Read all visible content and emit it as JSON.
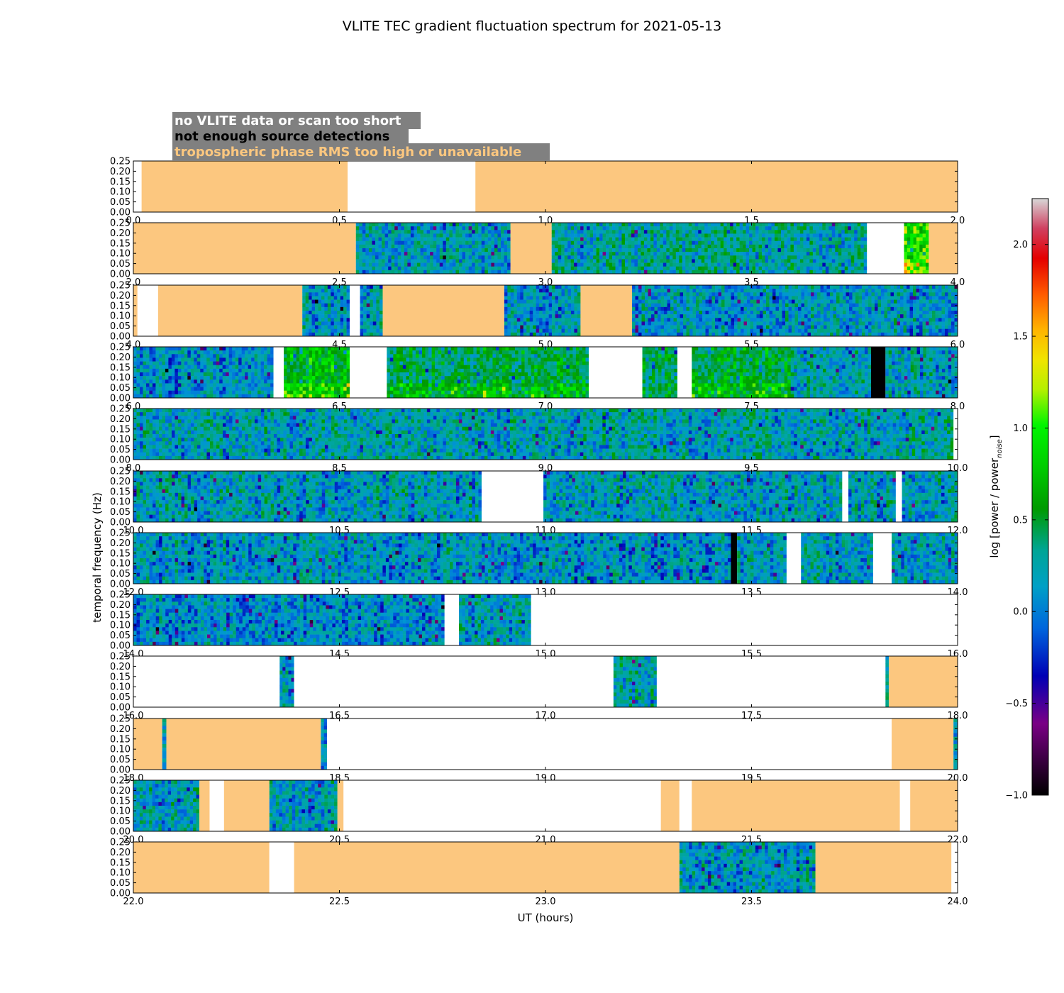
{
  "chart_data": {
    "type": "heatmap",
    "title": "VLITE TEC gradient fluctuation spectrum for 2021-05-13",
    "xlabel": "UT (hours)",
    "ylabel": "temporal frequency (Hz)",
    "y_ticks": [
      "0.00",
      "0.05",
      "0.10",
      "0.15",
      "0.20",
      "0.25"
    ],
    "ylim": [
      0,
      0.25
    ],
    "colorbar": {
      "label_main": "log [power / power",
      "label_sub": "noise",
      "label_close": "]",
      "vmin": -1.0,
      "vmax": 2.25,
      "ticks": [
        "−1.0",
        "−0.5",
        "0.0",
        "0.5",
        "1.0",
        "1.5",
        "2.0"
      ],
      "tick_values": [
        -1.0,
        -0.5,
        0.0,
        0.5,
        1.0,
        1.5,
        2.0
      ]
    },
    "legend": [
      {
        "text": "no VLITE data or scan too short",
        "color": "#ffffff",
        "background": "#808080"
      },
      {
        "text": "not enough source detections",
        "color": "#000000",
        "background": "#808080"
      },
      {
        "text": "tropospheric phase RMS too high or unavailable",
        "color": "#fcc77f",
        "background": "#808080"
      }
    ],
    "category_colors": {
      "no_data": "#ffffff",
      "few_detections": "#000000",
      "tropo": "#fcc77f"
    },
    "panels": [
      {
        "x_start": 0,
        "x_end": 2,
        "x_ticks": [
          "0.0",
          "0.5",
          "1.0",
          "1.5",
          "2.0"
        ],
        "segments": [
          [
            "none",
            0,
            0.02
          ],
          [
            "tropo",
            0.02,
            0.52
          ],
          [
            "none",
            0.52,
            0.83
          ],
          [
            "tropo",
            0.83,
            2.0
          ]
        ]
      },
      {
        "x_start": 2,
        "x_end": 4,
        "x_ticks": [
          "2.0",
          "2.5",
          "3.0",
          "3.5",
          "4.0"
        ],
        "segments": [
          [
            "tropo",
            2.0,
            2.54
          ],
          [
            "spec",
            2.54,
            2.915,
            0.0
          ],
          [
            "tropo",
            2.915,
            3.015
          ],
          [
            "spec",
            3.015,
            3.78,
            0.1
          ],
          [
            "none",
            3.78,
            3.87
          ],
          [
            "spec",
            3.87,
            3.93,
            0.9
          ],
          [
            "tropo",
            3.93,
            4.0
          ]
        ]
      },
      {
        "x_start": 4,
        "x_end": 6,
        "x_ticks": [
          "4.0",
          "4.5",
          "5.0",
          "5.5",
          "6.0"
        ],
        "segments": [
          [
            "tropo",
            4.0,
            4.01
          ],
          [
            "none",
            4.01,
            4.06
          ],
          [
            "tropo",
            4.06,
            4.41
          ],
          [
            "spec",
            4.41,
            4.525,
            -0.05
          ],
          [
            "none",
            4.525,
            4.55
          ],
          [
            "spec",
            4.55,
            4.605,
            0.0
          ],
          [
            "tropo",
            4.605,
            4.9
          ],
          [
            "spec",
            4.9,
            5.085,
            0.0
          ],
          [
            "tropo",
            5.085,
            5.21
          ],
          [
            "spec",
            5.21,
            6.0,
            -0.05
          ]
        ]
      },
      {
        "x_start": 6,
        "x_end": 8,
        "x_ticks": [
          "6.0",
          "6.5",
          "7.0",
          "7.5",
          "8.0"
        ],
        "segments": [
          [
            "spec",
            6.0,
            6.34,
            -0.1
          ],
          [
            "none",
            6.34,
            6.365
          ],
          [
            "spec",
            6.365,
            6.525,
            0.65
          ],
          [
            "none",
            6.525,
            6.615
          ],
          [
            "spec",
            6.615,
            7.105,
            0.35
          ],
          [
            "none",
            7.105,
            7.235
          ],
          [
            "spec",
            7.235,
            7.32,
            0.3
          ],
          [
            "none",
            7.32,
            7.355
          ],
          [
            "spec",
            7.355,
            7.595,
            0.45
          ],
          [
            "spec",
            7.595,
            7.79,
            0.05
          ],
          [
            "few",
            7.79,
            7.825
          ],
          [
            "spec",
            7.825,
            8.0,
            0.0
          ]
        ]
      },
      {
        "x_start": 8,
        "x_end": 10,
        "x_ticks": [
          "8.0",
          "8.5",
          "9.0",
          "9.5",
          "10.0"
        ],
        "segments": [
          [
            "spec",
            8.0,
            9.99,
            0.05
          ],
          [
            "none",
            9.99,
            10.0
          ]
        ]
      },
      {
        "x_start": 10,
        "x_end": 12,
        "x_ticks": [
          "10.0",
          "10.5",
          "11.0",
          "11.5",
          "12.0"
        ],
        "segments": [
          [
            "spec",
            10.0,
            10.845,
            0.0
          ],
          [
            "none",
            10.845,
            10.995
          ],
          [
            "spec",
            10.995,
            11.72,
            0.0
          ],
          [
            "none",
            11.72,
            11.735
          ],
          [
            "spec",
            11.735,
            11.85,
            0.0
          ],
          [
            "none",
            11.85,
            11.865
          ],
          [
            "spec",
            11.865,
            12.0,
            0.0
          ]
        ]
      },
      {
        "x_start": 12,
        "x_end": 14,
        "x_ticks": [
          "12.0",
          "12.5",
          "13.0",
          "13.5",
          "14.0"
        ],
        "segments": [
          [
            "spec",
            12.0,
            13.45,
            -0.05
          ],
          [
            "few",
            13.45,
            13.465
          ],
          [
            "spec",
            13.465,
            13.585,
            0.0
          ],
          [
            "none",
            13.585,
            13.62
          ],
          [
            "spec",
            13.62,
            13.795,
            0.0
          ],
          [
            "none",
            13.795,
            13.84
          ],
          [
            "spec",
            13.84,
            14.0,
            0.0
          ]
        ]
      },
      {
        "x_start": 14,
        "x_end": 16,
        "x_ticks": [
          "14.0",
          "14.5",
          "15.0",
          "15.5",
          "16.0"
        ],
        "segments": [
          [
            "spec",
            14.0,
            14.755,
            -0.1
          ],
          [
            "none",
            14.755,
            14.79
          ],
          [
            "spec",
            14.79,
            14.965,
            0.0
          ],
          [
            "none",
            14.965,
            16.0
          ]
        ]
      },
      {
        "x_start": 16,
        "x_end": 18,
        "x_ticks": [
          "16.0",
          "16.5",
          "17.0",
          "17.5",
          "18.0"
        ],
        "segments": [
          [
            "none",
            16.0,
            16.355
          ],
          [
            "spec",
            16.355,
            16.39,
            0.0
          ],
          [
            "none",
            16.39,
            17.165
          ],
          [
            "spec",
            17.165,
            17.27,
            0.1
          ],
          [
            "none",
            17.27,
            17.825
          ],
          [
            "spec",
            17.825,
            17.833,
            0.0
          ],
          [
            "tropo",
            17.833,
            18.0
          ]
        ]
      },
      {
        "x_start": 18,
        "x_end": 20,
        "x_ticks": [
          "18.0",
          "18.5",
          "19.0",
          "19.5",
          "20.0"
        ],
        "segments": [
          [
            "tropo",
            18.0,
            18.07
          ],
          [
            "spec",
            18.07,
            18.08,
            0.0
          ],
          [
            "tropo",
            18.08,
            18.455
          ],
          [
            "spec",
            18.455,
            18.47,
            0.0
          ],
          [
            "none",
            18.47,
            19.84
          ],
          [
            "tropo",
            19.84,
            19.99
          ],
          [
            "spec",
            19.99,
            20.0,
            0.0
          ]
        ]
      },
      {
        "x_start": 20,
        "x_end": 22,
        "x_ticks": [
          "20.0",
          "20.5",
          "21.0",
          "21.5",
          "22.0"
        ],
        "segments": [
          [
            "spec",
            20.0,
            20.16,
            0.0
          ],
          [
            "tropo",
            20.16,
            20.185
          ],
          [
            "none",
            20.185,
            20.22
          ],
          [
            "tropo",
            20.22,
            20.33
          ],
          [
            "spec",
            20.33,
            20.495,
            0.0
          ],
          [
            "tropo",
            20.495,
            20.51
          ],
          [
            "none",
            20.51,
            21.28
          ],
          [
            "tropo",
            21.28,
            21.325
          ],
          [
            "none",
            21.325,
            21.355
          ],
          [
            "tropo",
            21.355,
            21.86
          ],
          [
            "none",
            21.86,
            21.885
          ],
          [
            "tropo",
            21.885,
            22.0
          ]
        ]
      },
      {
        "x_start": 22,
        "x_end": 24,
        "x_ticks": [
          "22.0",
          "22.5",
          "23.0",
          "23.5",
          "24.0"
        ],
        "segments": [
          [
            "tropo",
            22.0,
            22.33
          ],
          [
            "none",
            22.33,
            22.39
          ],
          [
            "tropo",
            22.39,
            23.325
          ],
          [
            "spec",
            23.325,
            23.655,
            0.0
          ],
          [
            "tropo",
            23.655,
            23.985
          ],
          [
            "none",
            23.985,
            24.0
          ]
        ]
      }
    ]
  }
}
